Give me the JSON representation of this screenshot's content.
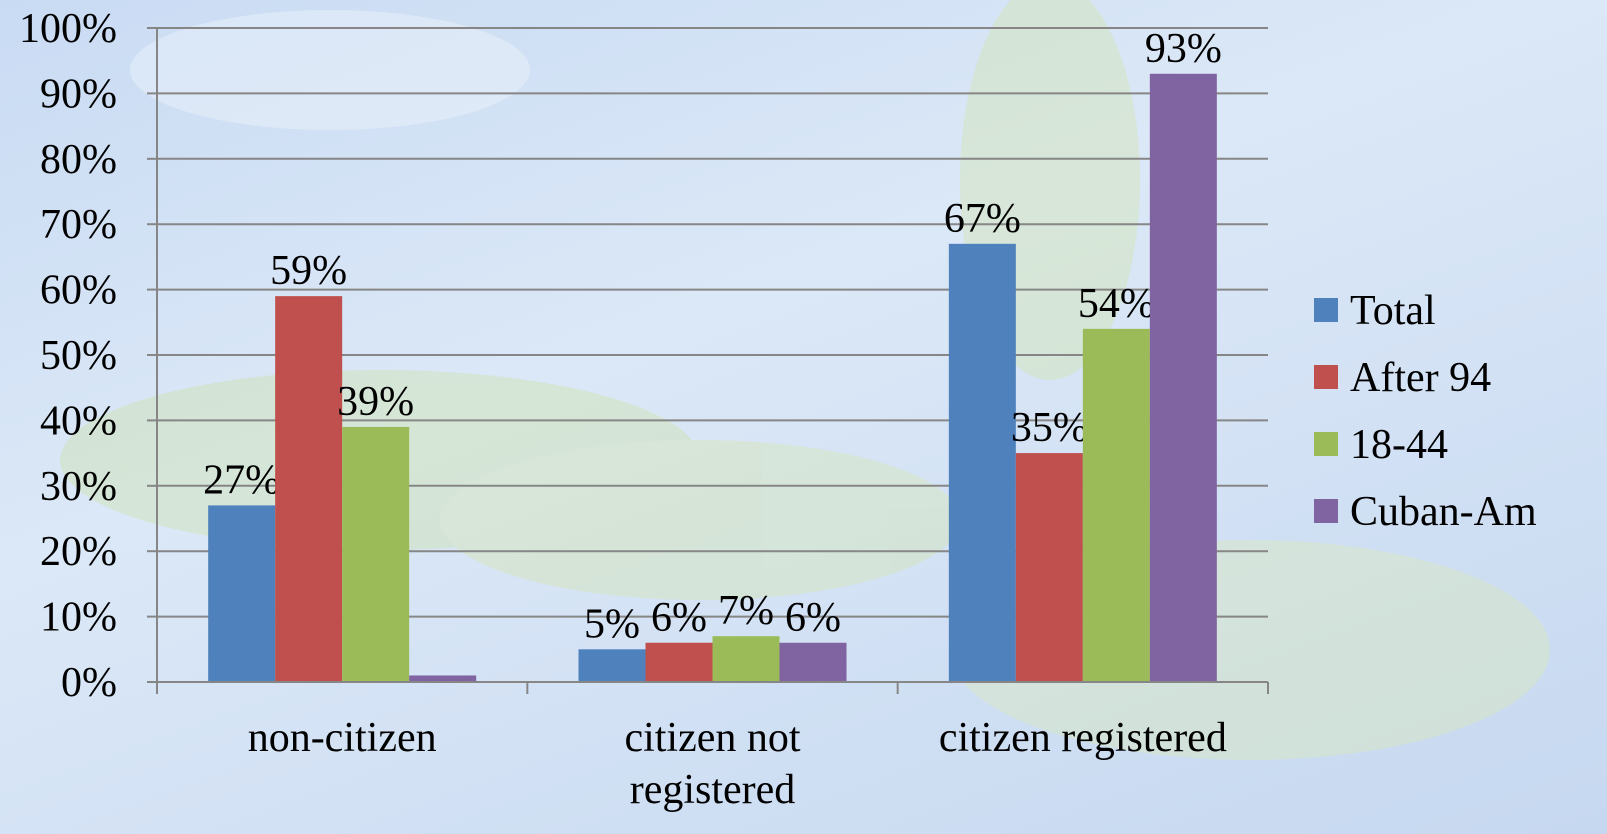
{
  "chart_data": {
    "type": "bar",
    "categories": [
      "non-citizen",
      "citizen not registered",
      "citizen registered"
    ],
    "series": [
      {
        "name": "Total",
        "color": "#4f81bd",
        "values": [
          27,
          5,
          67
        ],
        "value_labels": [
          "27%",
          "5%",
          "67%"
        ]
      },
      {
        "name": "After 94",
        "color": "#c0504d",
        "values": [
          59,
          6,
          35
        ],
        "value_labels": [
          "59%",
          "6%",
          "35%"
        ]
      },
      {
        "name": "18-44",
        "color": "#9bbb59",
        "values": [
          39,
          7,
          54
        ],
        "value_labels": [
          "39%",
          "7%",
          "54%"
        ]
      },
      {
        "name": "Cuban-Am",
        "color": "#8064a2",
        "values": [
          1,
          6,
          93
        ],
        "value_labels": [
          null,
          "6%",
          "93%"
        ]
      }
    ],
    "ylim": [
      0,
      100
    ],
    "yticks": [
      {
        "value": 0,
        "label": "0%"
      },
      {
        "value": 10,
        "label": "10%"
      },
      {
        "value": 20,
        "label": "20%"
      },
      {
        "value": 30,
        "label": "30%"
      },
      {
        "value": 40,
        "label": "40%"
      },
      {
        "value": 50,
        "label": "50%"
      },
      {
        "value": 60,
        "label": "60%"
      },
      {
        "value": 70,
        "label": "70%"
      },
      {
        "value": 80,
        "label": "80%"
      },
      {
        "value": 90,
        "label": "90%"
      },
      {
        "value": 100,
        "label": "100%"
      }
    ],
    "grid": true,
    "legend": "right"
  }
}
